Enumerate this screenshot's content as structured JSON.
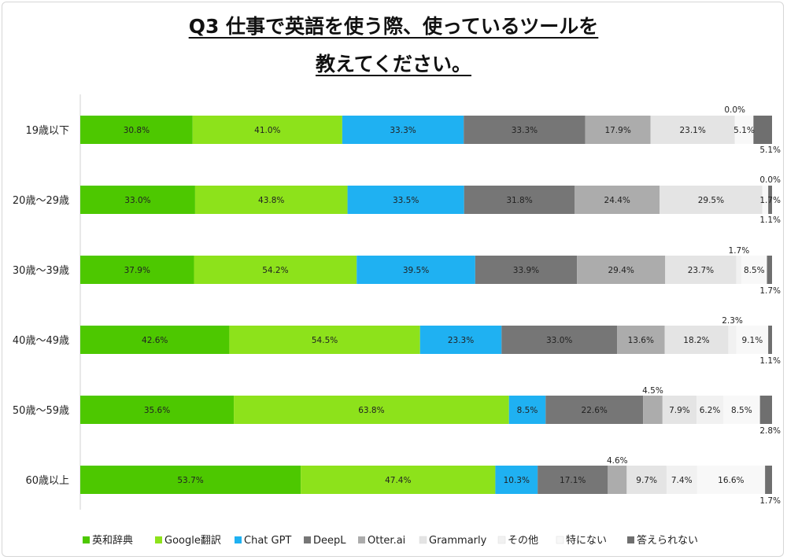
{
  "title_line1": "Q3 仕事で英語を使う際、使っているツールを",
  "title_line2": "教えてください。",
  "chart_data": {
    "type": "bar",
    "orientation": "horizontal",
    "stacked": true,
    "categories": [
      "19歳以下",
      "20歳〜29歳",
      "30歳〜39歳",
      "40歳〜49歳",
      "50歳〜59歳",
      "60歳以上"
    ],
    "series": [
      {
        "name": "英和辞典",
        "color": "#4dc800",
        "values": [
          30.8,
          33.0,
          37.9,
          42.6,
          35.6,
          53.7
        ]
      },
      {
        "name": "Google翻訳",
        "color": "#8de21b",
        "values": [
          41.0,
          43.8,
          54.2,
          54.5,
          63.8,
          47.4
        ]
      },
      {
        "name": "Chat GPT",
        "color": "#1fb1f2",
        "values": [
          33.3,
          33.5,
          39.5,
          23.3,
          8.5,
          10.3
        ]
      },
      {
        "name": "DeepL",
        "color": "#767676",
        "values": [
          33.3,
          31.8,
          33.9,
          33.0,
          22.6,
          17.1
        ]
      },
      {
        "name": "Otter.ai",
        "color": "#acacac",
        "values": [
          17.9,
          24.4,
          29.4,
          13.6,
          4.5,
          4.6
        ]
      },
      {
        "name": "Grammarly",
        "color": "#e4e4e4",
        "values": [
          23.1,
          29.5,
          23.7,
          18.2,
          7.9,
          9.7
        ]
      },
      {
        "name": "その他",
        "color": "#f1f1f1",
        "values": [
          0.0,
          0.0,
          1.7,
          2.3,
          6.2,
          7.4
        ]
      },
      {
        "name": "特にない",
        "color": "#f8f8f8",
        "values": [
          5.1,
          1.7,
          8.5,
          9.1,
          8.5,
          16.6
        ]
      },
      {
        "name": "答えられない",
        "color": "#6f6f6f",
        "values": [
          5.1,
          1.1,
          1.7,
          1.1,
          2.8,
          1.7
        ]
      }
    ],
    "data_labels": [
      [
        "30.8%",
        "41.0%",
        "33.3%",
        "33.3%",
        "17.9%",
        "23.1%",
        "0.0%",
        "5.1%",
        "5.1%"
      ],
      [
        "33.0%",
        "43.8%",
        "33.5%",
        "31.8%",
        "24.4%",
        "29.5%",
        "0.0%",
        "1.7%",
        "1.1%"
      ],
      [
        "37.9%",
        "54.2%",
        "39.5%",
        "33.9%",
        "29.4%",
        "23.7%",
        "1.7%",
        "8.5%",
        "1.7%"
      ],
      [
        "42.6%",
        "54.5%",
        "23.3%",
        "33.0%",
        "13.6%",
        "18.2%",
        "2.3%",
        "9.1%",
        "1.1%"
      ],
      [
        "35.6%",
        "63.8%",
        "8.5%",
        "22.6%",
        "4.5%",
        "7.9%",
        "6.2%",
        "8.5%",
        "2.8%"
      ],
      [
        "53.7%",
        "47.4%",
        "10.3%",
        "17.1%",
        "4.6%",
        "9.7%",
        "7.4%",
        "16.6%",
        "1.7%"
      ]
    ],
    "legend_position": "bottom",
    "grid": false
  }
}
